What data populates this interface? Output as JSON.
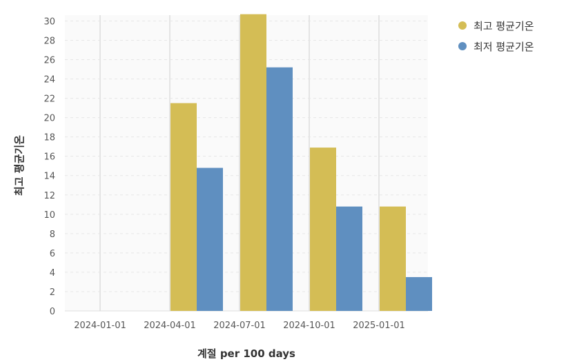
{
  "chart_data": {
    "type": "bar",
    "categories": [
      "2024-01-01",
      "2024-04-01",
      "2024-07-01",
      "2024-10-01",
      "2025-01-01"
    ],
    "series": [
      {
        "name": "최고 평균기온",
        "color": "#d4bd55",
        "values": [
          null,
          21.5,
          30.7,
          16.9,
          10.8
        ]
      },
      {
        "name": "최저 평균기온",
        "color": "#5f8fc0",
        "values": [
          null,
          14.8,
          25.2,
          10.8,
          3.5
        ]
      }
    ],
    "xlabel": "계절 per 100 days",
    "ylabel": "최고 평균기온",
    "ylim": [
      0,
      30.6
    ],
    "yticks": [
      0,
      2,
      4,
      6,
      8,
      10,
      12,
      14,
      16,
      18,
      20,
      22,
      24,
      26,
      28,
      30
    ],
    "grid": true,
    "legend_position": "top-right"
  }
}
